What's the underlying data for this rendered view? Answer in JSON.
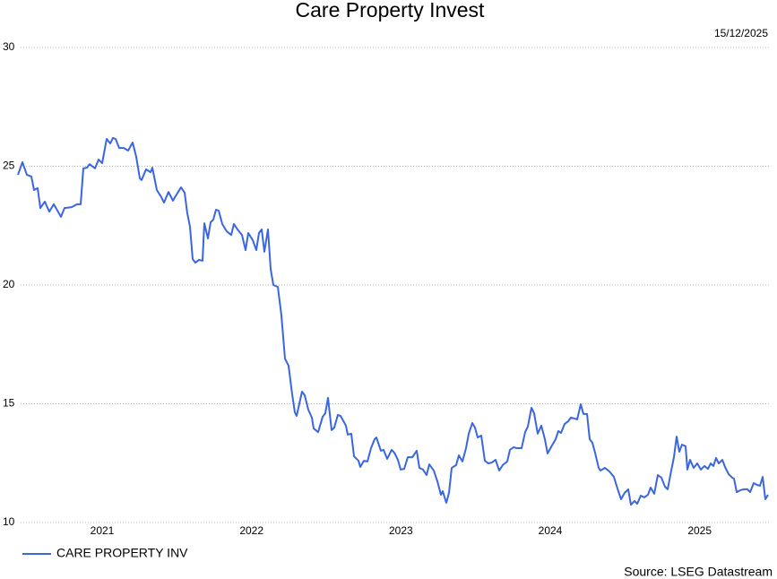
{
  "chart_data": {
    "type": "line",
    "title": "Care Property Invest",
    "date": "15/12/2025",
    "source": "Source: LSEG Datastream",
    "xlim": [
      2020.436,
      2025.458
    ],
    "xticks": [
      2021,
      2022,
      2023,
      2024,
      2025
    ],
    "ylim": [
      10,
      30
    ],
    "yticks": [
      10,
      15,
      20,
      25,
      30
    ],
    "grid": true,
    "legend": "bottom-left",
    "x": [
      2020.436,
      2020.466,
      2020.496,
      2020.526,
      2020.544,
      2020.568,
      2020.586,
      2020.616,
      2020.646,
      2020.676,
      2020.724,
      2020.748,
      2020.796,
      2020.832,
      2020.856,
      2020.874,
      2020.898,
      2020.916,
      2020.952,
      2020.976,
      2021.0,
      2021.03,
      2021.054,
      2021.072,
      2021.09,
      2021.114,
      2021.144,
      2021.174,
      2021.204,
      2021.228,
      2021.252,
      2021.264,
      2021.294,
      2021.324,
      2021.336,
      2021.366,
      2021.396,
      2021.414,
      2021.444,
      2021.474,
      2021.498,
      2021.528,
      2021.552,
      2021.57,
      2021.588,
      2021.606,
      2021.624,
      2021.648,
      2021.672,
      2021.684,
      2021.708,
      2021.726,
      2021.744,
      2021.762,
      2021.78,
      2021.804,
      2021.834,
      2021.864,
      2021.882,
      2021.906,
      2021.936,
      2021.96,
      2021.978,
      2022.008,
      2022.032,
      2022.05,
      2022.068,
      2022.086,
      2022.11,
      2022.128,
      2022.146,
      2022.176,
      2022.2,
      2022.224,
      2022.248,
      2022.272,
      2022.29,
      2022.302,
      2022.338,
      2022.356,
      2022.38,
      2022.404,
      2022.416,
      2022.446,
      2022.476,
      2022.494,
      2022.512,
      2022.536,
      2022.554,
      2022.578,
      2022.596,
      2022.632,
      2022.644,
      2022.668,
      2022.686,
      2022.716,
      2022.728,
      2022.752,
      2022.776,
      2022.8,
      2022.824,
      2022.836,
      2022.866,
      2022.884,
      2022.908,
      2022.938,
      2022.956,
      2022.98,
      2022.998,
      2023.022,
      2023.046,
      2023.076,
      2023.106,
      2023.124,
      2023.148,
      2023.172,
      2023.19,
      2023.22,
      2023.244,
      2023.268,
      2023.28,
      2023.304,
      2023.322,
      2023.34,
      2023.37,
      2023.388,
      2023.412,
      2023.436,
      2023.454,
      2023.478,
      2023.496,
      2023.514,
      2023.538,
      2023.562,
      2023.586,
      2023.61,
      2023.634,
      2023.658,
      2023.682,
      2023.712,
      2023.73,
      2023.754,
      2023.778,
      2023.808,
      2023.832,
      2023.85,
      2023.874,
      2023.892,
      2023.916,
      2023.94,
      2023.964,
      2023.982,
      2024.012,
      2024.036,
      2024.054,
      2024.072,
      2024.096,
      2024.12,
      2024.138,
      2024.162,
      2024.18,
      2024.204,
      2024.222,
      2024.246,
      2024.264,
      2024.282,
      2024.3,
      2024.324,
      2024.336,
      2024.366,
      2024.396,
      2024.426,
      2024.45,
      2024.474,
      2024.498,
      2024.522,
      2024.54,
      2024.564,
      2024.582,
      2024.606,
      2024.63,
      2024.654,
      2024.672,
      2024.696,
      2024.72,
      2024.744,
      2024.768,
      2024.786,
      2024.81,
      2024.828,
      2024.846,
      2024.864,
      2024.882,
      2024.906,
      2024.918,
      2024.936,
      2024.96,
      2024.984,
      2025.008,
      2025.032,
      2025.056,
      2025.074,
      2025.092,
      2025.11,
      2025.128,
      2025.152,
      2025.17,
      2025.194,
      2025.218,
      2025.23,
      2025.248,
      2025.272,
      2025.296,
      2025.32,
      2025.338,
      2025.362,
      2025.386,
      2025.404,
      2025.422,
      2025.44,
      2025.458
    ],
    "series": [
      {
        "name": "CARE PROPERTY INV",
        "color": "#3a66e0",
        "values": [
          24.64,
          25.17,
          24.64,
          24.57,
          24.0,
          24.08,
          23.24,
          23.51,
          23.09,
          23.4,
          22.87,
          23.24,
          23.28,
          23.4,
          23.4,
          24.91,
          24.94,
          25.09,
          24.91,
          25.28,
          25.13,
          26.15,
          25.96,
          26.19,
          26.15,
          25.77,
          25.77,
          25.66,
          26.0,
          25.4,
          24.49,
          24.42,
          24.87,
          24.75,
          24.94,
          24.0,
          23.7,
          23.47,
          23.92,
          23.55,
          23.81,
          24.11,
          23.89,
          23.02,
          22.45,
          21.09,
          20.94,
          21.06,
          21.02,
          22.6,
          21.96,
          22.64,
          22.75,
          23.17,
          23.13,
          22.57,
          22.26,
          22.11,
          22.57,
          22.34,
          22.11,
          21.47,
          22.19,
          21.89,
          21.47,
          22.19,
          22.34,
          21.4,
          22.34,
          20.68,
          20.0,
          19.92,
          18.72,
          16.9,
          16.6,
          15.4,
          14.64,
          14.49,
          15.51,
          15.36,
          14.75,
          14.42,
          13.96,
          13.81,
          14.45,
          14.6,
          15.25,
          13.89,
          14.0,
          14.53,
          14.49,
          14.08,
          13.7,
          13.74,
          12.79,
          12.6,
          12.34,
          12.6,
          12.57,
          13.13,
          13.51,
          13.58,
          13.02,
          13.06,
          12.68,
          13.06,
          12.94,
          12.64,
          12.23,
          12.26,
          12.75,
          12.75,
          13.02,
          12.3,
          12.23,
          12.0,
          12.45,
          12.19,
          11.74,
          11.17,
          11.32,
          10.83,
          11.25,
          12.3,
          12.42,
          12.83,
          12.57,
          13.13,
          13.74,
          14.19,
          14.0,
          13.58,
          13.66,
          12.6,
          12.49,
          12.53,
          12.64,
          12.19,
          12.42,
          12.57,
          13.06,
          13.17,
          13.13,
          13.13,
          13.81,
          14.04,
          14.83,
          14.6,
          13.74,
          14.08,
          13.51,
          12.91,
          13.25,
          13.51,
          13.85,
          13.77,
          14.15,
          14.26,
          14.42,
          14.38,
          14.34,
          14.98,
          14.57,
          14.57,
          13.51,
          13.36,
          12.94,
          12.3,
          12.19,
          12.3,
          12.15,
          11.92,
          11.43,
          10.98,
          11.25,
          11.4,
          10.75,
          10.91,
          10.79,
          11.13,
          11.06,
          11.17,
          11.47,
          11.21,
          12.0,
          11.89,
          11.51,
          11.4,
          12.19,
          12.75,
          13.62,
          12.98,
          13.28,
          13.21,
          12.23,
          12.64,
          12.3,
          12.49,
          12.23,
          12.38,
          12.26,
          12.49,
          12.38,
          12.72,
          12.49,
          12.64,
          12.34,
          12.04,
          11.89,
          11.85,
          11.28,
          11.36,
          11.4,
          11.4,
          11.28,
          11.66,
          11.58,
          11.55,
          11.92,
          10.98,
          11.17
        ]
      }
    ]
  }
}
